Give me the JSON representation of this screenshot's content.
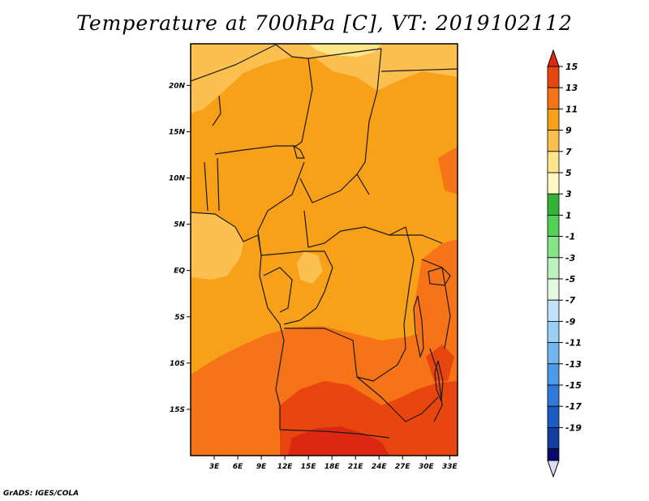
{
  "title": "Temperature at 700hPa [C], VT: 2019102112",
  "credit": "GrADS: IGES/COLA",
  "map": {
    "lon_range": [
      0,
      34
    ],
    "lat_range": [
      -20,
      24.5
    ],
    "lat_ticks": [
      {
        "value": 20,
        "label": "20N"
      },
      {
        "value": 15,
        "label": "15N"
      },
      {
        "value": 10,
        "label": "10N"
      },
      {
        "value": 5,
        "label": "5N"
      },
      {
        "value": 0,
        "label": "EQ"
      },
      {
        "value": -5,
        "label": "5S"
      },
      {
        "value": -10,
        "label": "10S"
      },
      {
        "value": -15,
        "label": "15S"
      }
    ],
    "lon_ticks": [
      {
        "value": 3,
        "label": "3E"
      },
      {
        "value": 6,
        "label": "6E"
      },
      {
        "value": 9,
        "label": "9E"
      },
      {
        "value": 12,
        "label": "12E"
      },
      {
        "value": 15,
        "label": "15E"
      },
      {
        "value": 18,
        "label": "18E"
      },
      {
        "value": 21,
        "label": "21E"
      },
      {
        "value": 24,
        "label": "24E"
      },
      {
        "value": 27,
        "label": "27E"
      },
      {
        "value": 30,
        "label": "30E"
      },
      {
        "value": 33,
        "label": "33E"
      }
    ],
    "colors": {
      "band_5_7": "#fde58a",
      "band_7_9": "#fbc04f",
      "band_9_11": "#f9a019",
      "band_11_13": "#f67318",
      "band_13_15": "#e9450e",
      "above_15": "#dc2810",
      "border": "#1a1a1a"
    }
  },
  "colorbar": {
    "labels": [
      "15",
      "13",
      "11",
      "9",
      "7",
      "5",
      "3",
      "1",
      "-1",
      "-3",
      "-5",
      "-7",
      "-9",
      "-11",
      "-13",
      "-15",
      "-17",
      "-19"
    ],
    "colors": [
      "#e9450e",
      "#f67318",
      "#f9a019",
      "#fbc04f",
      "#fde58a",
      "#fff8c4",
      "#32b432",
      "#52d252",
      "#86e686",
      "#bff1bf",
      "#e2f8e2",
      "#bfe3fa",
      "#9ad0f6",
      "#73b6f0",
      "#4d9aea",
      "#2f79de",
      "#1b5cc4",
      "#123ea0"
    ],
    "top_color": "#dc2810",
    "bottom_color": "#09096e",
    "bottom_arrow_color": "#dcdcf5"
  }
}
